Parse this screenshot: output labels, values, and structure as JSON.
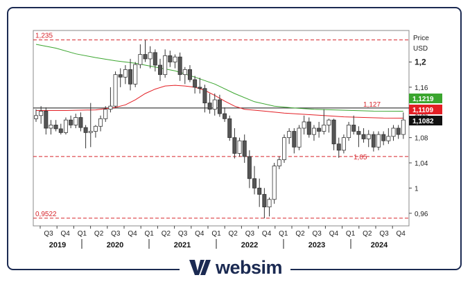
{
  "chart_data": {
    "type": "candlestick",
    "title": "",
    "price_label": "Price",
    "currency_label": "USD",
    "y_min": 0.94,
    "y_max": 1.25,
    "y_ticks": [
      {
        "value": 1.2,
        "label": "1,2",
        "bold": true
      },
      {
        "value": 1.16,
        "label": "1,16",
        "bold": false
      },
      {
        "value": 1.12,
        "label": "1,12",
        "bold": false
      },
      {
        "value": 1.08,
        "label": "1,08",
        "bold": false
      },
      {
        "value": 1.04,
        "label": "1,04",
        "bold": false
      },
      {
        "value": 1.0,
        "label": "1",
        "bold": false
      },
      {
        "value": 0.96,
        "label": "0,96",
        "bold": false
      }
    ],
    "quarter_labels": [
      "Q3",
      "Q4",
      "Q1",
      "Q2",
      "Q3",
      "Q4",
      "Q1",
      "Q2",
      "Q3",
      "Q4",
      "Q1",
      "Q2",
      "Q3",
      "Q4",
      "Q1",
      "Q2",
      "Q3",
      "Q4",
      "Q1",
      "Q2",
      "Q3",
      "Q4"
    ],
    "year_labels": [
      "2019",
      "2020",
      "2021",
      "2022",
      "2023",
      "2024"
    ],
    "level_lines": [
      {
        "value": 1.235,
        "label": "1,235",
        "style": "dashed"
      },
      {
        "value": 1.05,
        "label": "1,05",
        "style": "dashed"
      },
      {
        "value": 0.9522,
        "label": "0,9522",
        "style": "dashed"
      },
      {
        "value": 1.127,
        "label": "1,127",
        "style": "solid"
      }
    ],
    "price_badges": [
      {
        "value": 1.1219,
        "label": "1,1219",
        "color": "#3aa52e"
      },
      {
        "value": 1.1109,
        "label": "1,1109",
        "color": "#e31e24"
      },
      {
        "value": 1.1082,
        "label": "1,1082",
        "color": "#111111"
      }
    ],
    "candles": [
      [
        1.11,
        1.125,
        1.105,
        1.115
      ],
      [
        1.115,
        1.13,
        1.102,
        1.122
      ],
      [
        1.122,
        1.128,
        1.085,
        1.095
      ],
      [
        1.095,
        1.108,
        1.085,
        1.1
      ],
      [
        1.1,
        1.108,
        1.09,
        1.094
      ],
      [
        1.094,
        1.102,
        1.085,
        1.088
      ],
      [
        1.088,
        1.112,
        1.085,
        1.108
      ],
      [
        1.108,
        1.115,
        1.095,
        1.1
      ],
      [
        1.1,
        1.118,
        1.095,
        1.112
      ],
      [
        1.112,
        1.12,
        1.09,
        1.096
      ],
      [
        1.096,
        1.1,
        1.063,
        1.088
      ],
      [
        1.088,
        1.135,
        1.065,
        1.09
      ],
      [
        1.09,
        1.1,
        1.08,
        1.098
      ],
      [
        1.098,
        1.115,
        1.09,
        1.11
      ],
      [
        1.11,
        1.13,
        1.105,
        1.125
      ],
      [
        1.125,
        1.16,
        1.12,
        1.13
      ],
      [
        1.13,
        1.185,
        1.128,
        1.18
      ],
      [
        1.18,
        1.19,
        1.16,
        1.176
      ],
      [
        1.176,
        1.195,
        1.165,
        1.188
      ],
      [
        1.188,
        1.205,
        1.155,
        1.165
      ],
      [
        1.165,
        1.2,
        1.16,
        1.196
      ],
      [
        1.196,
        1.228,
        1.19,
        1.212
      ],
      [
        1.212,
        1.235,
        1.2,
        1.205
      ],
      [
        1.205,
        1.225,
        1.19,
        1.215
      ],
      [
        1.215,
        1.22,
        1.185,
        1.195
      ],
      [
        1.195,
        1.205,
        1.17,
        1.18
      ],
      [
        1.18,
        1.22,
        1.175,
        1.21
      ],
      [
        1.21,
        1.218,
        1.192,
        1.2
      ],
      [
        1.2,
        1.212,
        1.19,
        1.208
      ],
      [
        1.208,
        1.215,
        1.17,
        1.18
      ],
      [
        1.18,
        1.192,
        1.165,
        1.188
      ],
      [
        1.188,
        1.195,
        1.168,
        1.172
      ],
      [
        1.172,
        1.178,
        1.15,
        1.16
      ],
      [
        1.16,
        1.175,
        1.15,
        1.158
      ],
      [
        1.158,
        1.164,
        1.12,
        1.135
      ],
      [
        1.135,
        1.15,
        1.118,
        1.125
      ],
      [
        1.125,
        1.15,
        1.115,
        1.14
      ],
      [
        1.14,
        1.148,
        1.113,
        1.118
      ],
      [
        1.118,
        1.128,
        1.105,
        1.11
      ],
      [
        1.11,
        1.115,
        1.075,
        1.08
      ],
      [
        1.08,
        1.095,
        1.047,
        1.055
      ],
      [
        1.055,
        1.08,
        1.05,
        1.075
      ],
      [
        1.075,
        1.085,
        1.04,
        1.05
      ],
      [
        1.05,
        1.06,
        1.0,
        1.015
      ],
      [
        1.015,
        1.035,
        0.99,
        1.0
      ],
      [
        1.0,
        1.015,
        0.97,
        0.99
      ],
      [
        0.99,
        1.0,
        0.952,
        0.97
      ],
      [
        0.97,
        0.985,
        0.955,
        0.982
      ],
      [
        0.982,
        1.04,
        0.975,
        1.035
      ],
      [
        1.035,
        1.05,
        1.03,
        1.045
      ],
      [
        1.045,
        1.085,
        1.04,
        1.08
      ],
      [
        1.08,
        1.095,
        1.07,
        1.09
      ],
      [
        1.09,
        1.095,
        1.055,
        1.065
      ],
      [
        1.065,
        1.1,
        1.06,
        1.095
      ],
      [
        1.095,
        1.115,
        1.085,
        1.105
      ],
      [
        1.105,
        1.112,
        1.08,
        1.085
      ],
      [
        1.085,
        1.1,
        1.075,
        1.095
      ],
      [
        1.095,
        1.105,
        1.08,
        1.09
      ],
      [
        1.09,
        1.125,
        1.085,
        1.1
      ],
      [
        1.1,
        1.11,
        1.088,
        1.108
      ],
      [
        1.108,
        1.11,
        1.06,
        1.07
      ],
      [
        1.07,
        1.08,
        1.048,
        1.06
      ],
      [
        1.06,
        1.085,
        1.055,
        1.08
      ],
      [
        1.08,
        1.105,
        1.075,
        1.1
      ],
      [
        1.1,
        1.115,
        1.085,
        1.09
      ],
      [
        1.09,
        1.098,
        1.065,
        1.085
      ],
      [
        1.085,
        1.095,
        1.072,
        1.078
      ],
      [
        1.078,
        1.092,
        1.065,
        1.085
      ],
      [
        1.085,
        1.09,
        1.058,
        1.065
      ],
      [
        1.065,
        1.09,
        1.06,
        1.085
      ],
      [
        1.085,
        1.09,
        1.068,
        1.075
      ],
      [
        1.075,
        1.095,
        1.07,
        1.082
      ],
      [
        1.082,
        1.1,
        1.075,
        1.095
      ],
      [
        1.095,
        1.1,
        1.078,
        1.085
      ],
      [
        1.085,
        1.12,
        1.078,
        1.108
      ]
    ],
    "ma_series": [
      {
        "color": "#e31e24",
        "points": [
          [
            0,
            1.123
          ],
          [
            6,
            1.123
          ],
          [
            12,
            1.124
          ],
          [
            16,
            1.128
          ],
          [
            18,
            1.132
          ],
          [
            20,
            1.14
          ],
          [
            22,
            1.15
          ],
          [
            24,
            1.157
          ],
          [
            26,
            1.162
          ],
          [
            28,
            1.163
          ],
          [
            30,
            1.162
          ],
          [
            32,
            1.16
          ],
          [
            34,
            1.155
          ],
          [
            36,
            1.147
          ],
          [
            38,
            1.138
          ],
          [
            40,
            1.13
          ],
          [
            42,
            1.125
          ],
          [
            46,
            1.122
          ],
          [
            50,
            1.119
          ],
          [
            54,
            1.117
          ],
          [
            58,
            1.115
          ],
          [
            62,
            1.113
          ],
          [
            66,
            1.112
          ],
          [
            70,
            1.111
          ],
          [
            74,
            1.1109
          ]
        ]
      },
      {
        "color": "#3aa52e",
        "points": [
          [
            0,
            1.228
          ],
          [
            4,
            1.222
          ],
          [
            8,
            1.213
          ],
          [
            12,
            1.207
          ],
          [
            16,
            1.202
          ],
          [
            20,
            1.198
          ],
          [
            24,
            1.192
          ],
          [
            28,
            1.186
          ],
          [
            32,
            1.176
          ],
          [
            36,
            1.165
          ],
          [
            40,
            1.15
          ],
          [
            44,
            1.137
          ],
          [
            48,
            1.13
          ],
          [
            52,
            1.127
          ],
          [
            56,
            1.125
          ],
          [
            60,
            1.124
          ],
          [
            64,
            1.123
          ],
          [
            68,
            1.122
          ],
          [
            74,
            1.1219
          ]
        ]
      }
    ]
  },
  "brand": {
    "name": "websim"
  },
  "colors": {
    "frame": "#1b2a52",
    "up": "#ffffff",
    "down": "#555555",
    "level": "#d6232a",
    "grid": "#bbbbbb"
  }
}
